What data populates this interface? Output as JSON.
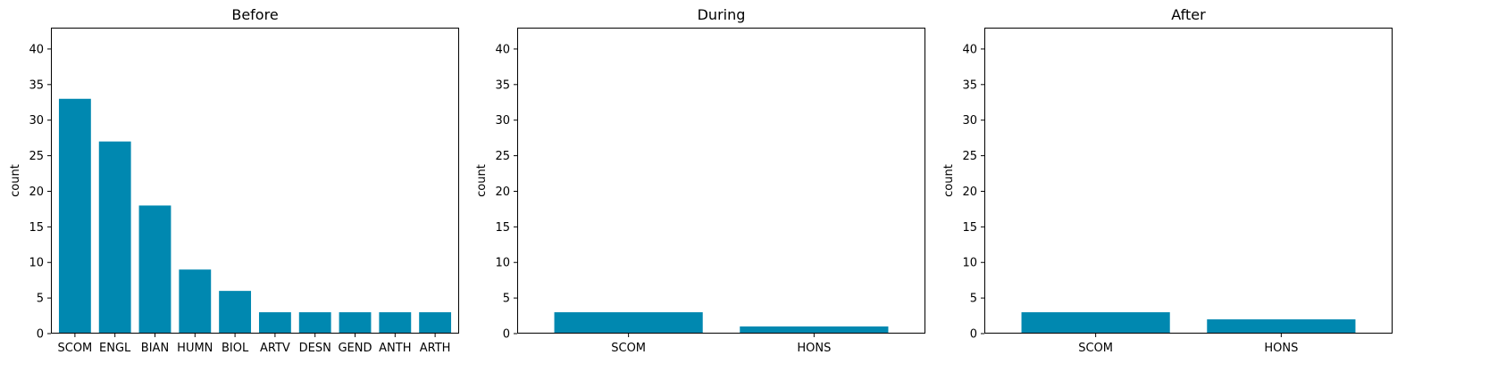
{
  "chart_data": [
    {
      "type": "bar",
      "title": "Before",
      "xlabel": "",
      "ylabel": "count",
      "ylim": [
        0,
        43
      ],
      "yticks": [
        0,
        5,
        10,
        15,
        20,
        25,
        30,
        35,
        40
      ],
      "categories": [
        "SCOM",
        "ENGL",
        "BIAN",
        "HUMN",
        "BIOL",
        "ARTV",
        "DESN",
        "GEND",
        "ANTH",
        "ARTH"
      ],
      "values": [
        33,
        27,
        18,
        9,
        6,
        3,
        3,
        3,
        3,
        3
      ],
      "color": "#0088b0",
      "grid": false
    },
    {
      "type": "bar",
      "title": "During",
      "xlabel": "",
      "ylabel": "count",
      "ylim": [
        0,
        43
      ],
      "yticks": [
        0,
        5,
        10,
        15,
        20,
        25,
        30,
        35,
        40
      ],
      "categories": [
        "SCOM",
        "HONS"
      ],
      "values": [
        3,
        1
      ],
      "color": "#0088b0",
      "grid": false
    },
    {
      "type": "bar",
      "title": "After",
      "xlabel": "",
      "ylabel": "count",
      "ylim": [
        0,
        43
      ],
      "yticks": [
        0,
        5,
        10,
        15,
        20,
        25,
        30,
        35,
        40
      ],
      "categories": [
        "SCOM",
        "HONS"
      ],
      "values": [
        3,
        2
      ],
      "color": "#0088b0",
      "grid": false
    }
  ]
}
